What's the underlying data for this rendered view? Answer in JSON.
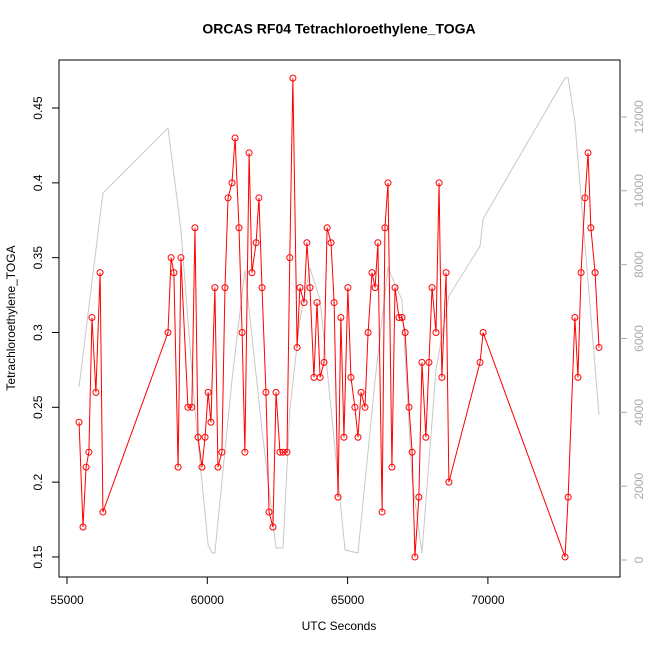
{
  "chart_data": {
    "type": "line",
    "title": "ORCAS RF04 Tetrachloroethylene_TOGA",
    "x_label": "UTC Seconds",
    "y_label": "Tetrachloroethylene_TOGA",
    "xlim": [
      54715,
      74708
    ],
    "xticks": [
      55000,
      60000,
      65000,
      70000
    ],
    "ylim": [
      0.1366,
      0.4821
    ],
    "yticks": [
      0.15,
      0.2,
      0.25,
      0.3,
      0.35,
      0.4,
      0.45
    ],
    "y2lim": [
      -460,
      13543
    ],
    "y2ticks": [
      0,
      2000,
      4000,
      6000,
      8000,
      10000,
      12000
    ],
    "series": [
      {
        "color": "#c8c8c8",
        "axis": "y2",
        "x": [
          55430,
          56280,
          58600,
          59060,
          59560,
          60030,
          60170,
          60270,
          60880,
          61340,
          61950,
          62450,
          62700,
          62940,
          63300,
          63660,
          64020,
          64380,
          64910,
          65370,
          65980,
          66440,
          66940,
          67300,
          67650,
          68150,
          68610,
          69720,
          69830,
          72750,
          72860,
          73100,
          73960
        ],
        "values": [
          4690,
          9940,
          11700,
          8940,
          4060,
          410,
          190,
          190,
          4880,
          7850,
          3520,
          330,
          330,
          4060,
          6500,
          7910,
          7040,
          4330,
          270,
          190,
          4880,
          7910,
          7040,
          2170,
          190,
          5150,
          7150,
          8500,
          9240,
          13060,
          13060,
          11860,
          3930
        ]
      },
      {
        "color": "#ff0000",
        "markers": true,
        "x": [
          55430,
          55570,
          55680,
          55780,
          55890,
          56030,
          56180,
          56280,
          58600,
          58710,
          58810,
          58960,
          59060,
          59310,
          59450,
          59560,
          59670,
          59810,
          59920,
          60030,
          60130,
          60270,
          60380,
          60520,
          60630,
          60740,
          60880,
          60990,
          61130,
          61240,
          61340,
          61490,
          61590,
          61740,
          61840,
          61950,
          62090,
          62200,
          62340,
          62450,
          62590,
          62700,
          62840,
          62940,
          63050,
          63200,
          63300,
          63450,
          63550,
          63660,
          63800,
          63910,
          64020,
          64160,
          64270,
          64410,
          64520,
          64660,
          64760,
          64870,
          65010,
          65120,
          65260,
          65370,
          65480,
          65620,
          65730,
          65870,
          65980,
          66080,
          66230,
          66330,
          66440,
          66580,
          66690,
          66830,
          66940,
          67050,
          67190,
          67300,
          67400,
          67540,
          67650,
          67790,
          67900,
          68010,
          68150,
          68260,
          68360,
          68510,
          68610,
          69720,
          69830,
          72750,
          72860,
          73100,
          73210,
          73320,
          73460,
          73570,
          73670,
          73820,
          73960
        ],
        "values": [
          0.24,
          0.17,
          0.21,
          0.22,
          0.31,
          0.26,
          0.34,
          0.18,
          0.3,
          0.35,
          0.34,
          0.21,
          0.35,
          0.25,
          0.25,
          0.37,
          0.23,
          0.21,
          0.23,
          0.26,
          0.24,
          0.33,
          0.21,
          0.22,
          0.33,
          0.39,
          0.4,
          0.43,
          0.37,
          0.3,
          0.22,
          0.42,
          0.34,
          0.36,
          0.39,
          0.33,
          0.26,
          0.18,
          0.17,
          0.26,
          0.22,
          0.22,
          0.22,
          0.35,
          0.47,
          0.29,
          0.33,
          0.32,
          0.36,
          0.33,
          0.27,
          0.32,
          0.27,
          0.28,
          0.37,
          0.36,
          0.32,
          0.19,
          0.31,
          0.23,
          0.33,
          0.27,
          0.25,
          0.23,
          0.26,
          0.25,
          0.3,
          0.34,
          0.33,
          0.36,
          0.18,
          0.37,
          0.4,
          0.21,
          0.33,
          0.31,
          0.31,
          0.3,
          0.25,
          0.22,
          0.15,
          0.19,
          0.28,
          0.23,
          0.28,
          0.33,
          0.3,
          0.4,
          0.27,
          0.34,
          0.2,
          0.28,
          0.3,
          0.15,
          0.19,
          0.31,
          0.27,
          0.34,
          0.39,
          0.42,
          0.37,
          0.34,
          0.29
        ]
      }
    ]
  }
}
